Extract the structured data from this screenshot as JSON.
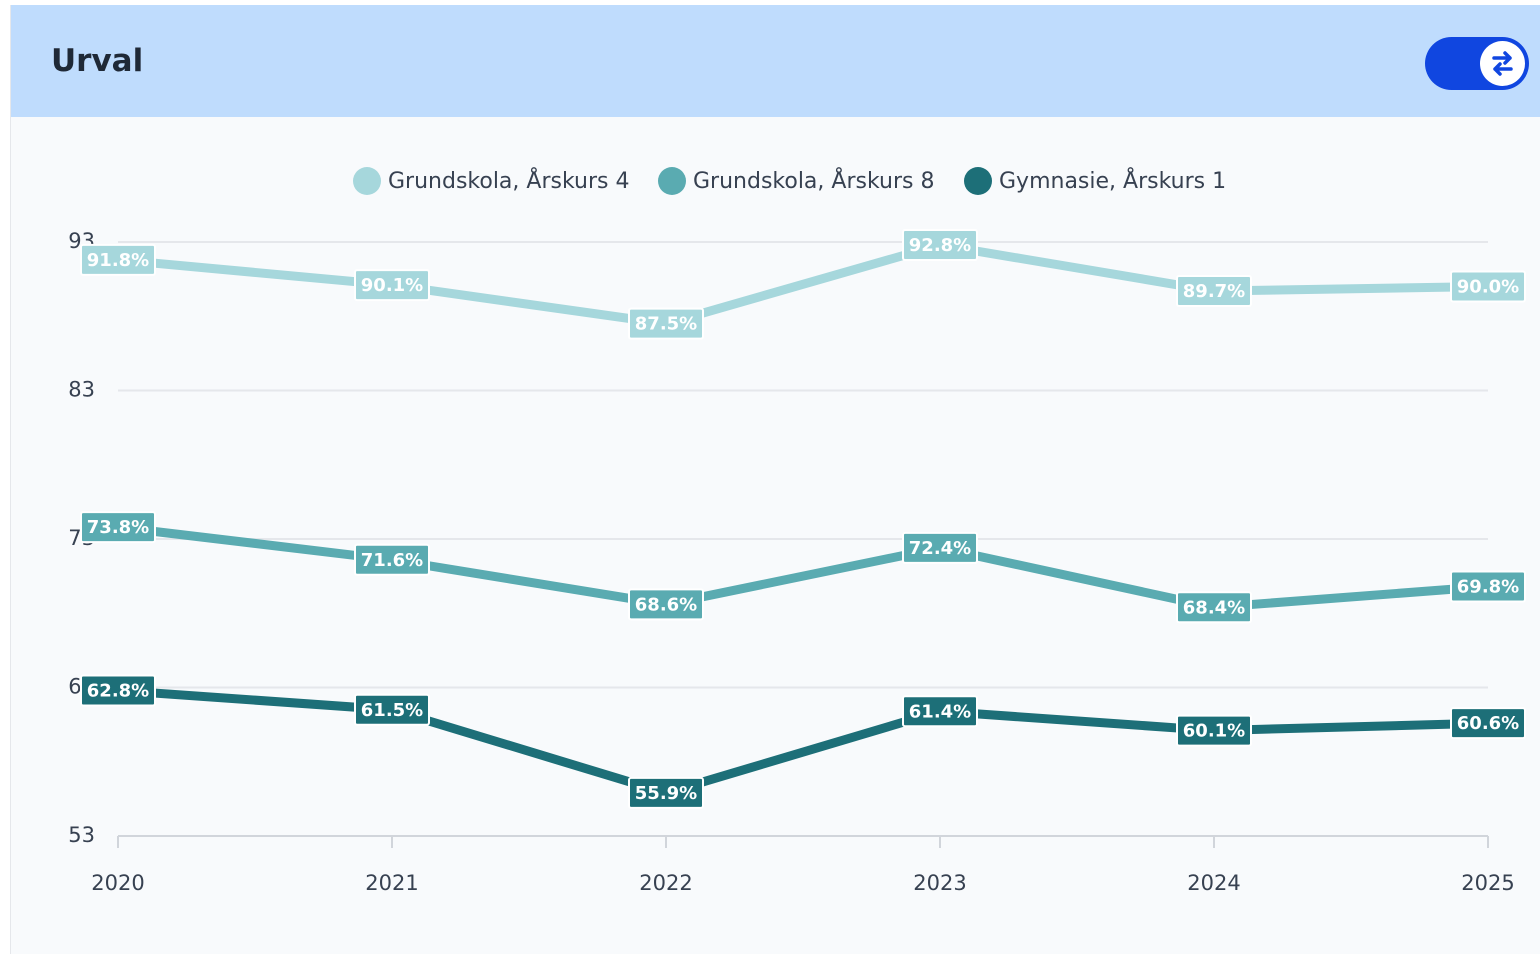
{
  "header": {
    "title": "Urval"
  },
  "chart_data": {
    "type": "line",
    "x": [
      2020,
      2021,
      2022,
      2023,
      2024,
      2025
    ],
    "xlim": [
      2020,
      2025
    ],
    "xticks": [
      2020,
      2021,
      2022,
      2023,
      2024,
      2025
    ],
    "ylim": [
      53,
      93
    ],
    "yticks": [
      53,
      63,
      73,
      83,
      93
    ],
    "grid": true,
    "legend": "top",
    "series": [
      {
        "name": "Grundskola, Årskurs 4",
        "color": "#a6d7dc",
        "values": [
          91.8,
          90.1,
          87.5,
          92.8,
          89.7,
          90.0
        ],
        "value_labels": [
          "91.8%",
          "90.1%",
          "87.5%",
          "92.8%",
          "89.7%",
          "90.0%"
        ]
      },
      {
        "name": "Grundskola, Årskurs 8",
        "color": "#5aabb1",
        "values": [
          73.8,
          71.6,
          68.6,
          72.4,
          68.4,
          69.8
        ],
        "value_labels": [
          "73.8%",
          "71.6%",
          "68.6%",
          "72.4%",
          "68.4%",
          "69.8%"
        ]
      },
      {
        "name": "Gymnasie, Årskurs 1",
        "color": "#1d6f78",
        "values": [
          62.8,
          61.5,
          55.9,
          61.4,
          60.1,
          60.6
        ],
        "value_labels": [
          "62.8%",
          "61.5%",
          "55.9%",
          "61.4%",
          "60.1%",
          "60.6%"
        ]
      }
    ]
  }
}
